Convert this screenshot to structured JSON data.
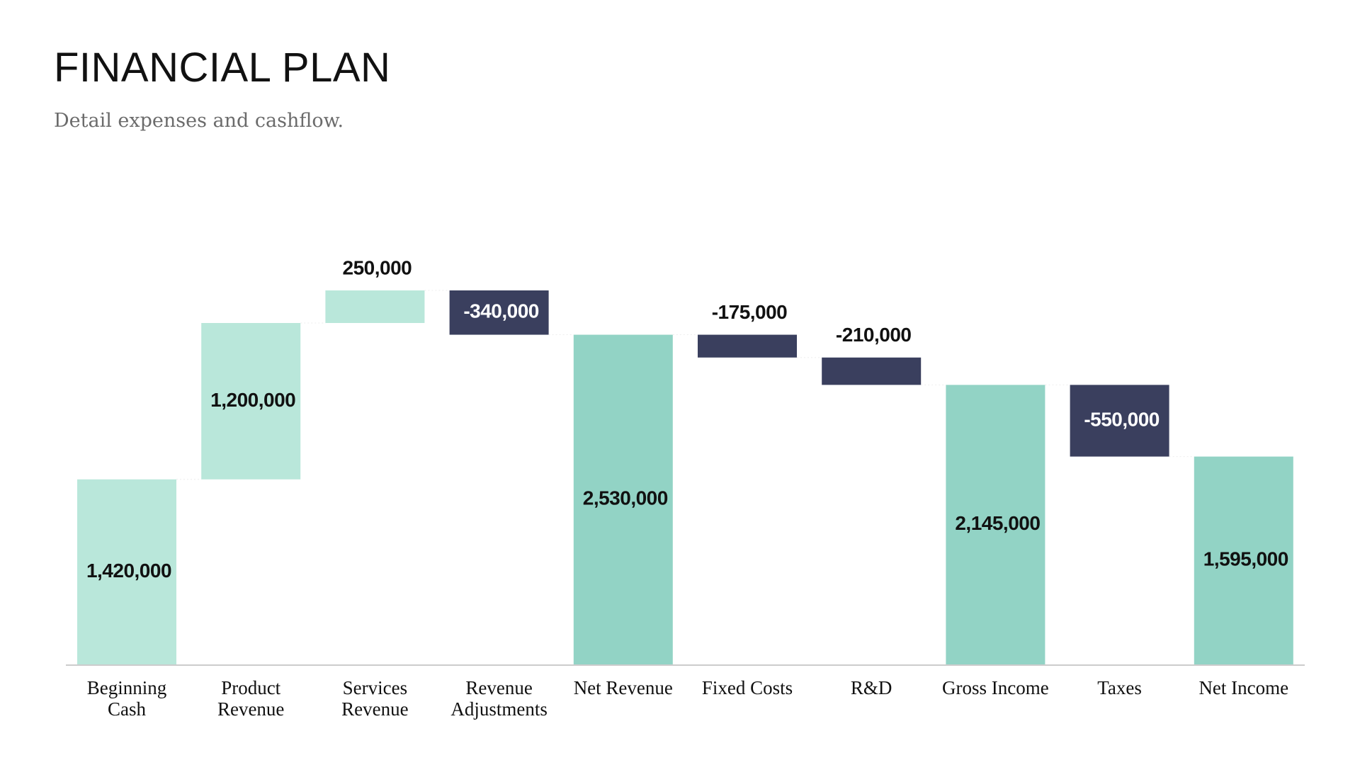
{
  "chart_data": {
    "type": "waterfall",
    "title": "FINANCIAL PLAN",
    "subtitle": "Detail expenses and cashflow.",
    "categories": [
      "Beginning Cash",
      "Product Revenue",
      "Services Revenue",
      "Revenue Adjustments",
      "Net Revenue",
      "Fixed Costs",
      "R&D",
      "Gross Income",
      "Taxes",
      "Net Income"
    ],
    "values": [
      1420000,
      1200000,
      250000,
      -340000,
      2530000,
      -175000,
      -210000,
      2145000,
      -550000,
      1595000
    ],
    "value_labels": [
      "1,420,000",
      "1,200,000",
      "250,000",
      "-340,000",
      "2,530,000",
      "-175,000",
      "-210,000",
      "2,145,000",
      "-550,000",
      "1,595,000"
    ],
    "is_total": [
      false,
      false,
      false,
      false,
      true,
      false,
      false,
      true,
      false,
      true
    ],
    "increase_color": "#b9e7da",
    "decrease_color": "#3a3f5e",
    "total_color": "#92d3c5"
  }
}
